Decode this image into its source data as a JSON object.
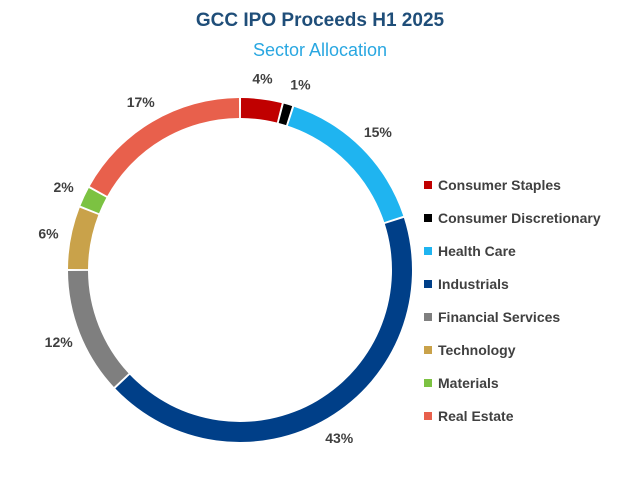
{
  "chart_data": {
    "type": "pie",
    "title": "GCC IPO Proceeds H1 2025",
    "subtitle": "Sector Allocation",
    "categories": [
      "Consumer Staples",
      "Consumer Discretionary",
      "Health Care",
      "Industrials",
      "Financial Services",
      "Technology",
      "Materials",
      "Real Estate"
    ],
    "values": [
      4,
      1,
      15,
      43,
      12,
      6,
      2,
      17
    ],
    "labels": [
      "4%",
      "1%",
      "15%",
      "43%",
      "12%",
      "6%",
      "2%",
      "17%"
    ],
    "colors": [
      "#c00000",
      "#000000",
      "#1fb4f0",
      "#003f88",
      "#7f7f7f",
      "#c9a24a",
      "#7cc242",
      "#e8604c"
    ],
    "style": "donut",
    "legend": "right"
  }
}
